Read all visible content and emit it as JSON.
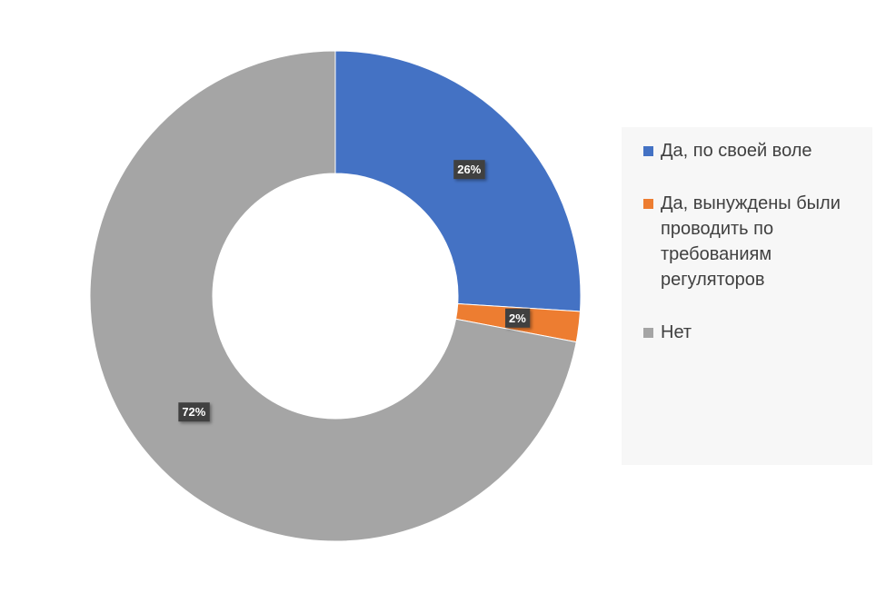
{
  "chart_data": {
    "type": "donut",
    "categories": [
      "Да, по своей воле",
      "Да, вынуждены были проводить по требованиям регуляторов",
      "Нет"
    ],
    "values": [
      26,
      2,
      72
    ],
    "value_labels": [
      "26%",
      "2%",
      "72%"
    ],
    "colors": [
      "#4472c4",
      "#ed7d31",
      "#a5a5a5"
    ],
    "legend": "right"
  }
}
